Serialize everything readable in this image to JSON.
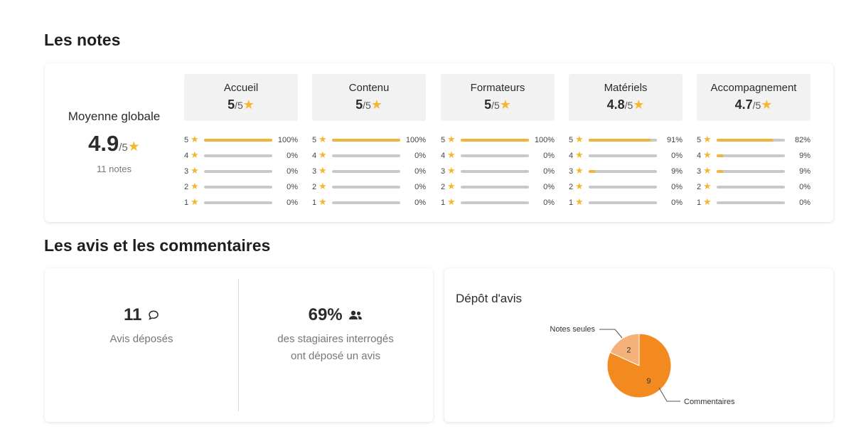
{
  "sections": {
    "notes_title": "Les notes",
    "avis_title": "Les avis et les commentaires"
  },
  "global": {
    "label": "Moyenne globale",
    "value": "4.9",
    "denominator": "/5",
    "count": "11 notes"
  },
  "categories": [
    {
      "name": "Accueil",
      "score": "5",
      "denominator": "/5",
      "rows": [
        {
          "level": "5",
          "percent": 100,
          "label": "100%"
        },
        {
          "level": "4",
          "percent": 0,
          "label": "0%"
        },
        {
          "level": "3",
          "percent": 0,
          "label": "0%"
        },
        {
          "level": "2",
          "percent": 0,
          "label": "0%"
        },
        {
          "level": "1",
          "percent": 0,
          "label": "0%"
        }
      ]
    },
    {
      "name": "Contenu",
      "score": "5",
      "denominator": "/5",
      "rows": [
        {
          "level": "5",
          "percent": 100,
          "label": "100%"
        },
        {
          "level": "4",
          "percent": 0,
          "label": "0%"
        },
        {
          "level": "3",
          "percent": 0,
          "label": "0%"
        },
        {
          "level": "2",
          "percent": 0,
          "label": "0%"
        },
        {
          "level": "1",
          "percent": 0,
          "label": "0%"
        }
      ]
    },
    {
      "name": "Formateurs",
      "score": "5",
      "denominator": "/5",
      "rows": [
        {
          "level": "5",
          "percent": 100,
          "label": "100%"
        },
        {
          "level": "4",
          "percent": 0,
          "label": "0%"
        },
        {
          "level": "3",
          "percent": 0,
          "label": "0%"
        },
        {
          "level": "2",
          "percent": 0,
          "label": "0%"
        },
        {
          "level": "1",
          "percent": 0,
          "label": "0%"
        }
      ]
    },
    {
      "name": "Matériels",
      "score": "4.8",
      "denominator": "/5",
      "rows": [
        {
          "level": "5",
          "percent": 91,
          "label": "91%"
        },
        {
          "level": "4",
          "percent": 0,
          "label": "0%"
        },
        {
          "level": "3",
          "percent": 9,
          "label": "9%"
        },
        {
          "level": "2",
          "percent": 0,
          "label": "0%"
        },
        {
          "level": "1",
          "percent": 0,
          "label": "0%"
        }
      ]
    },
    {
      "name": "Accompagnement",
      "score": "4.7",
      "denominator": "/5",
      "rows": [
        {
          "level": "5",
          "percent": 82,
          "label": "82%"
        },
        {
          "level": "4",
          "percent": 9,
          "label": "9%"
        },
        {
          "level": "3",
          "percent": 9,
          "label": "9%"
        },
        {
          "level": "2",
          "percent": 0,
          "label": "0%"
        },
        {
          "level": "1",
          "percent": 0,
          "label": "0%"
        }
      ]
    }
  ],
  "stats": {
    "avis_count": "11",
    "avis_label": "Avis déposés",
    "avis_icon": "comment-icon",
    "participation": "69%",
    "participation_icon": "users-icon",
    "participation_label_line1": "des stagiaires interrogés",
    "participation_label_line2": "ont déposé un avis"
  },
  "pie": {
    "title": "Dépôt d'avis"
  },
  "chart_data": {
    "type": "pie",
    "title": "Dépôt d'avis",
    "slices": [
      {
        "label": "Notes seules",
        "value": 2,
        "color": "#f4b27a"
      },
      {
        "label": "Commentaires",
        "value": 9,
        "color": "#f28a1f"
      }
    ]
  },
  "colors": {
    "star": "#f5b731",
    "bar_fill": "#f0b43a",
    "bar_track": "#c9c9c9"
  }
}
